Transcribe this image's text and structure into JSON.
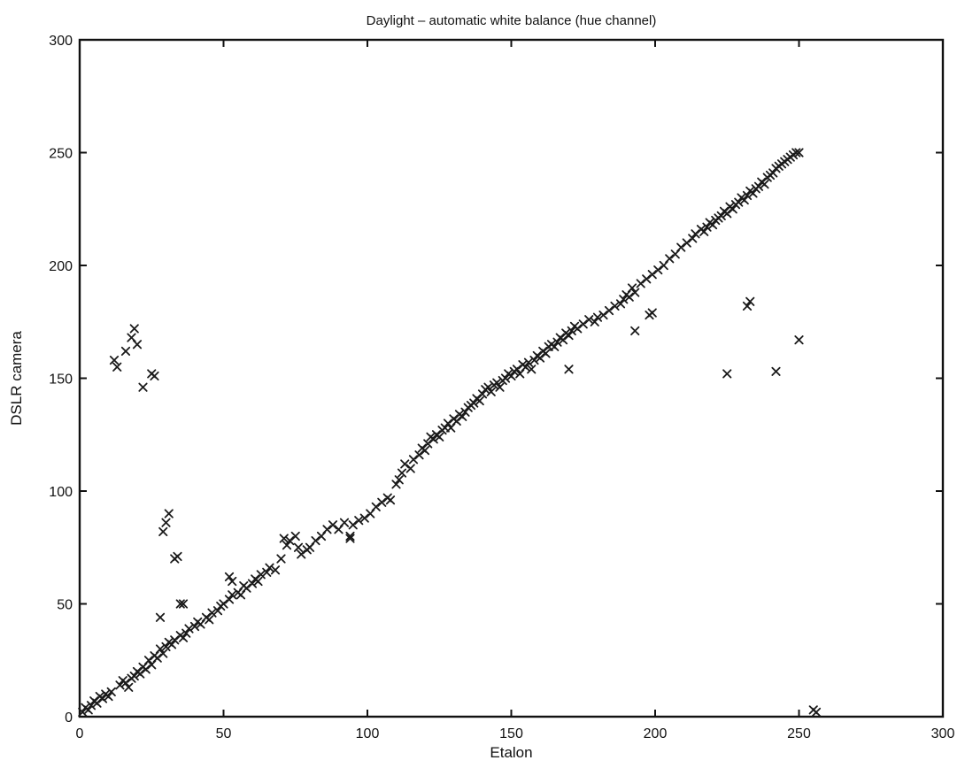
{
  "chart_data": {
    "type": "scatter",
    "title": "Daylight – automatic white balance (hue channel)",
    "xlabel": "Etalon",
    "ylabel": "DSLR camera",
    "xlim": [
      0,
      300
    ],
    "ylim": [
      0,
      300
    ],
    "xticks": [
      "0",
      "50",
      "100",
      "150",
      "200",
      "250",
      "300"
    ],
    "yticks": [
      "0",
      "50",
      "100",
      "150",
      "200",
      "250",
      "300"
    ],
    "grid": false,
    "marker": "x",
    "color": "#1a1a1a",
    "series": [
      {
        "points": [
          [
            1,
            2
          ],
          [
            2,
            4
          ],
          [
            3,
            3
          ],
          [
            4,
            5
          ],
          [
            5,
            7
          ],
          [
            6,
            6
          ],
          [
            7,
            9
          ],
          [
            8,
            8
          ],
          [
            9,
            10
          ],
          [
            10,
            9
          ],
          [
            11,
            11
          ],
          [
            14,
            14
          ],
          [
            15,
            16
          ],
          [
            16,
            15
          ],
          [
            17,
            13
          ],
          [
            18,
            17
          ],
          [
            19,
            18
          ],
          [
            20,
            20
          ],
          [
            21,
            19
          ],
          [
            22,
            22
          ],
          [
            23,
            21
          ],
          [
            24,
            25
          ],
          [
            25,
            23
          ],
          [
            26,
            27
          ],
          [
            27,
            26
          ],
          [
            28,
            30
          ],
          [
            29,
            28
          ],
          [
            30,
            31
          ],
          [
            31,
            33
          ],
          [
            32,
            32
          ],
          [
            33,
            34
          ],
          [
            35,
            36
          ],
          [
            36,
            35
          ],
          [
            37,
            37
          ],
          [
            38,
            39
          ],
          [
            40,
            40
          ],
          [
            41,
            42
          ],
          [
            42,
            41
          ],
          [
            44,
            44
          ],
          [
            45,
            43
          ],
          [
            46,
            46
          ],
          [
            48,
            47
          ],
          [
            49,
            49
          ],
          [
            50,
            50
          ],
          [
            52,
            52
          ],
          [
            53,
            54
          ],
          [
            55,
            55
          ],
          [
            56,
            54
          ],
          [
            57,
            58
          ],
          [
            58,
            57
          ],
          [
            60,
            59
          ],
          [
            61,
            61
          ],
          [
            62,
            60
          ],
          [
            63,
            63
          ],
          [
            65,
            64
          ],
          [
            66,
            66
          ],
          [
            68,
            65
          ],
          [
            70,
            70
          ],
          [
            71,
            79
          ],
          [
            72,
            76
          ],
          [
            73,
            78
          ],
          [
            75,
            80
          ],
          [
            76,
            75
          ],
          [
            77,
            72
          ],
          [
            79,
            74
          ],
          [
            80,
            75
          ],
          [
            82,
            78
          ],
          [
            84,
            80
          ],
          [
            86,
            83
          ],
          [
            88,
            85
          ],
          [
            90,
            83
          ],
          [
            92,
            86
          ],
          [
            94,
            80
          ],
          [
            95,
            85
          ],
          [
            97,
            87
          ],
          [
            99,
            88
          ],
          [
            101,
            90
          ],
          [
            103,
            93
          ],
          [
            105,
            95
          ],
          [
            107,
            97
          ],
          [
            108,
            96
          ],
          [
            110,
            103
          ],
          [
            111,
            105
          ],
          [
            112,
            108
          ],
          [
            113,
            112
          ],
          [
            115,
            110
          ],
          [
            116,
            114
          ],
          [
            118,
            116
          ],
          [
            119,
            119
          ],
          [
            120,
            118
          ],
          [
            121,
            121
          ],
          [
            122,
            124
          ],
          [
            123,
            123
          ],
          [
            124,
            125
          ],
          [
            125,
            124
          ],
          [
            126,
            127
          ],
          [
            127,
            128
          ],
          [
            128,
            130
          ],
          [
            129,
            128
          ],
          [
            130,
            132
          ],
          [
            131,
            131
          ],
          [
            132,
            134
          ],
          [
            133,
            133
          ],
          [
            134,
            135
          ],
          [
            135,
            137
          ],
          [
            136,
            138
          ],
          [
            137,
            139
          ],
          [
            138,
            141
          ],
          [
            139,
            140
          ],
          [
            140,
            143
          ],
          [
            141,
            145
          ],
          [
            142,
            146
          ],
          [
            143,
            144
          ],
          [
            144,
            147
          ],
          [
            145,
            148
          ],
          [
            146,
            146
          ],
          [
            147,
            149
          ],
          [
            148,
            150
          ],
          [
            149,
            152
          ],
          [
            150,
            151
          ],
          [
            151,
            153
          ],
          [
            152,
            154
          ],
          [
            153,
            152
          ],
          [
            154,
            156
          ],
          [
            155,
            155
          ],
          [
            156,
            157
          ],
          [
            157,
            154
          ],
          [
            158,
            158
          ],
          [
            159,
            160
          ],
          [
            160,
            159
          ],
          [
            161,
            162
          ],
          [
            162,
            161
          ],
          [
            163,
            164
          ],
          [
            164,
            165
          ],
          [
            165,
            164
          ],
          [
            166,
            166
          ],
          [
            167,
            168
          ],
          [
            168,
            167
          ],
          [
            169,
            170
          ],
          [
            170,
            169
          ],
          [
            171,
            171
          ],
          [
            172,
            173
          ],
          [
            173,
            172
          ],
          [
            175,
            174
          ],
          [
            177,
            176
          ],
          [
            179,
            175
          ],
          [
            180,
            177
          ],
          [
            182,
            178
          ],
          [
            184,
            180
          ],
          [
            186,
            182
          ],
          [
            188,
            183
          ],
          [
            189,
            185
          ],
          [
            190,
            187
          ],
          [
            191,
            186
          ],
          [
            192,
            190
          ],
          [
            193,
            188
          ],
          [
            195,
            192
          ],
          [
            197,
            194
          ],
          [
            199,
            196
          ],
          [
            201,
            198
          ],
          [
            203,
            200
          ],
          [
            205,
            203
          ],
          [
            207,
            205
          ],
          [
            209,
            208
          ],
          [
            211,
            210
          ],
          [
            213,
            212
          ],
          [
            214,
            214
          ],
          [
            216,
            216
          ],
          [
            217,
            215
          ],
          [
            218,
            217
          ],
          [
            219,
            219
          ],
          [
            220,
            218
          ],
          [
            221,
            220
          ],
          [
            222,
            221
          ],
          [
            223,
            222
          ],
          [
            224,
            224
          ],
          [
            225,
            223
          ],
          [
            226,
            226
          ],
          [
            227,
            225
          ],
          [
            228,
            227
          ],
          [
            229,
            228
          ],
          [
            230,
            230
          ],
          [
            231,
            229
          ],
          [
            232,
            231
          ],
          [
            233,
            233
          ],
          [
            234,
            232
          ],
          [
            235,
            234
          ],
          [
            236,
            235
          ],
          [
            237,
            237
          ],
          [
            238,
            236
          ],
          [
            239,
            239
          ],
          [
            240,
            240
          ],
          [
            241,
            241
          ],
          [
            242,
            243
          ],
          [
            243,
            244
          ],
          [
            244,
            245
          ],
          [
            245,
            246
          ],
          [
            246,
            247
          ],
          [
            247,
            248
          ],
          [
            248,
            249
          ],
          [
            249,
            250
          ],
          [
            250,
            250
          ],
          [
            12,
            158
          ],
          [
            13,
            155
          ],
          [
            16,
            162
          ],
          [
            18,
            168
          ],
          [
            19,
            172
          ],
          [
            20,
            165
          ],
          [
            22,
            146
          ],
          [
            25,
            152
          ],
          [
            26,
            151
          ],
          [
            28,
            44
          ],
          [
            29,
            82
          ],
          [
            30,
            86
          ],
          [
            31,
            90
          ],
          [
            33,
            70
          ],
          [
            34,
            71
          ],
          [
            35,
            50
          ],
          [
            36,
            50
          ],
          [
            52,
            62
          ],
          [
            53,
            60
          ],
          [
            94,
            79
          ],
          [
            170,
            154
          ],
          [
            193,
            171
          ],
          [
            198,
            178
          ],
          [
            199,
            179
          ],
          [
            225,
            152
          ],
          [
            232,
            182
          ],
          [
            233,
            184
          ],
          [
            242,
            153
          ],
          [
            250,
            167
          ],
          [
            255,
            3
          ],
          [
            256,
            2
          ]
        ]
      }
    ]
  }
}
